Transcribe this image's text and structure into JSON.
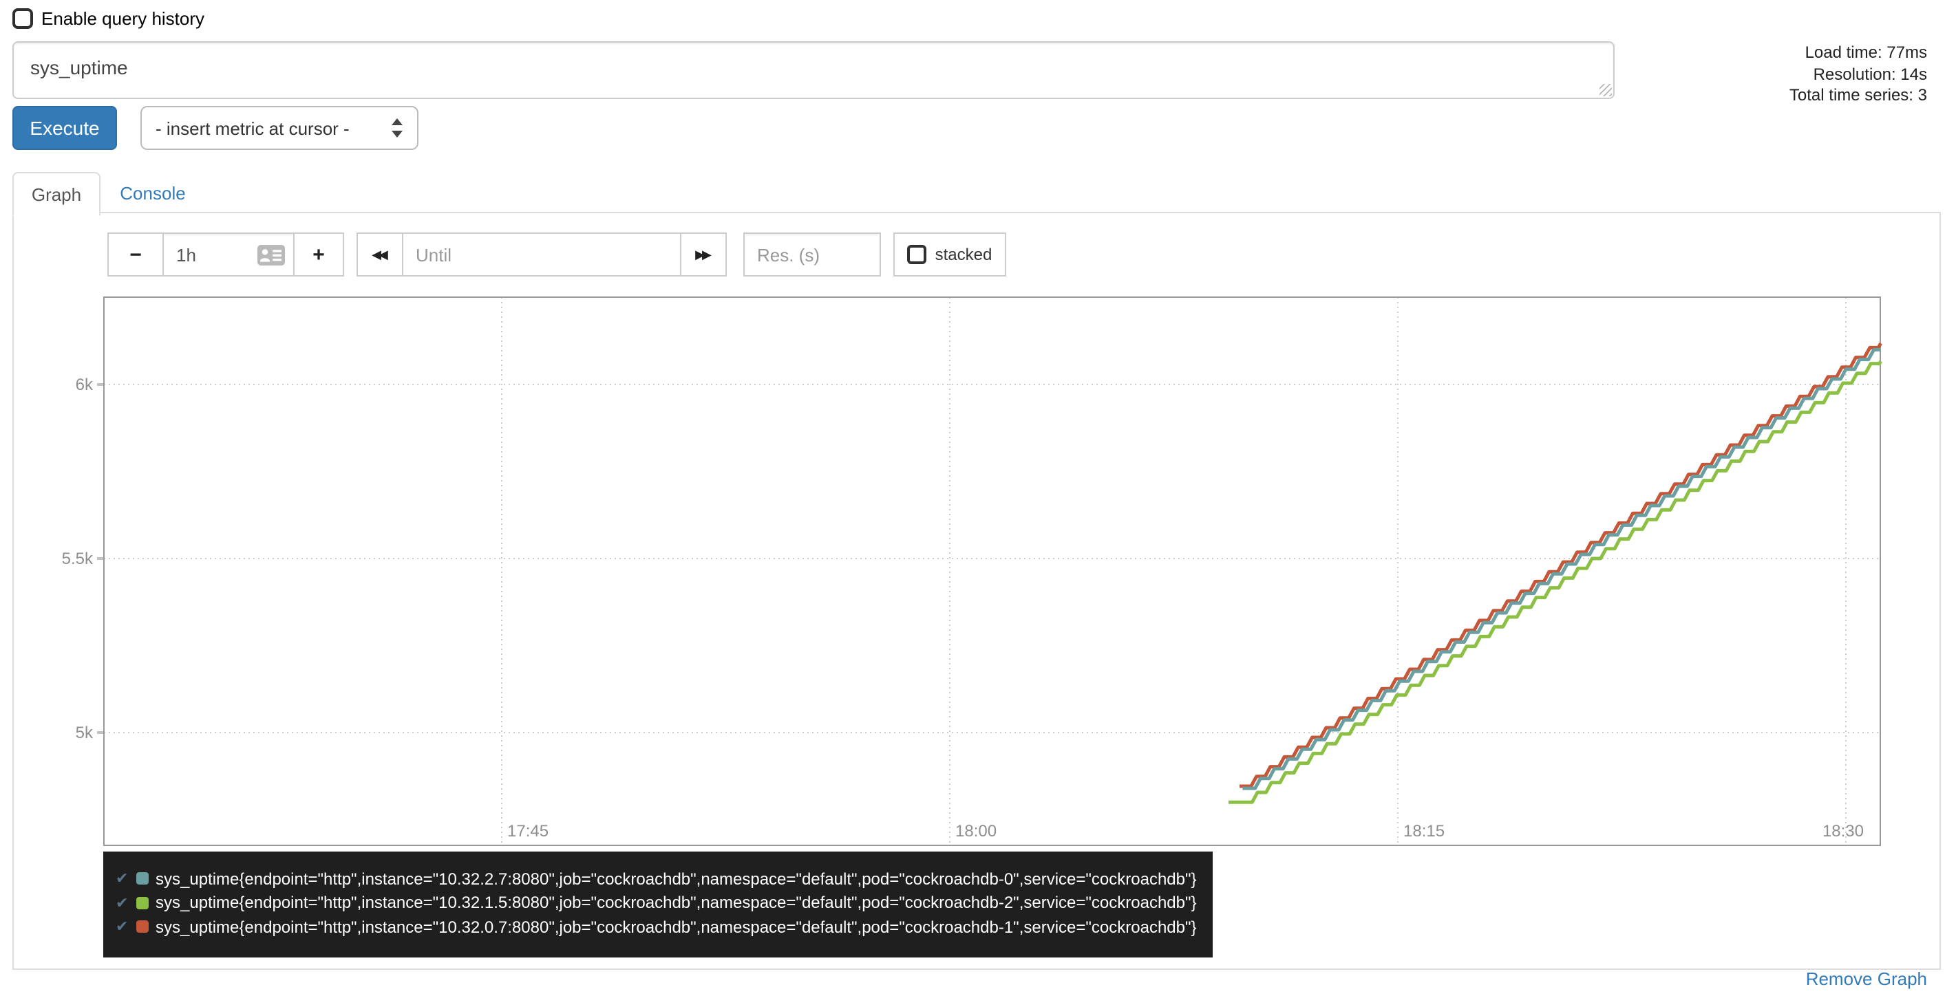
{
  "header": {
    "enable_query_history_label": "Enable query history",
    "query_history_checked": false
  },
  "expression_input": {
    "value": "sys_uptime"
  },
  "stats": {
    "load_time": "Load time: 77ms",
    "resolution": "Resolution: 14s",
    "total_time_series": "Total time series: 3"
  },
  "toolbar": {
    "execute_label": "Execute",
    "metric_dropdown_value": "- insert metric at cursor -"
  },
  "tabs": {
    "graph": "Graph",
    "console": "Console",
    "active": "Graph"
  },
  "graph_controls": {
    "shrink_range_label": "−",
    "range_value": "1h",
    "grow_range_label": "+",
    "back_label": "◀◀",
    "until_placeholder": "Until",
    "forward_label": "▶▶",
    "resolution_placeholder": "Res. (s)",
    "stacked_label": "stacked",
    "stacked_checked": false
  },
  "chart_data": {
    "type": "line",
    "title": "",
    "xlabel": "",
    "ylabel": "",
    "x_axis": {
      "ticks": [
        "17:45",
        "18:00",
        "18:15",
        "18:30"
      ],
      "tick_seconds_after_1745": [
        0,
        900,
        1800,
        2700
      ],
      "range": [
        "17:31:40",
        "18:31:10"
      ],
      "grid": "dotted"
    },
    "y_axis": {
      "ticks": [
        "5k",
        "5.5k",
        "6k"
      ],
      "tick_values": [
        5000,
        5500,
        6000
      ],
      "range": [
        4676,
        6251
      ],
      "grid": "dotted"
    },
    "legend_position": "bottom",
    "series": [
      {
        "name": "sys_uptime{endpoint=\"http\",instance=\"10.32.2.7:8080\",job=\"cockroachdb\",namespace=\"default\",pod=\"cockroachdb-0\",service=\"cockroachdb\"}",
        "color": "#6a9ea0",
        "z": 1,
        "shape": "uptime counter stair-step ramp, +1 unit per second",
        "t0_s": 1488,
        "v0": 4840,
        "lead_flat_s": 8,
        "t_end_s": 2770,
        "v_end": 6100,
        "step_s": 28
      },
      {
        "name": "sys_uptime{endpoint=\"http\",instance=\"10.32.1.5:8080\",job=\"cockroachdb\",namespace=\"default\",pod=\"cockroachdb-2\",service=\"cockroachdb\"}",
        "color": "#8bc045",
        "z": 2,
        "shape": "uptime counter stair-step ramp, +1 unit per second",
        "t0_s": 1460,
        "v0": 4800,
        "lead_flat_s": 30,
        "t_end_s": 2770,
        "v_end": 6067,
        "step_s": 28
      },
      {
        "name": "sys_uptime{endpoint=\"http\",instance=\"10.32.0.7:8080\",job=\"cockroachdb\",namespace=\"default\",pod=\"cockroachdb-1\",service=\"cockroachdb\"}",
        "color": "#c55738",
        "z": 0,
        "shape": "uptime counter stair-step ramp, +1 unit per second",
        "t0_s": 1482,
        "v0": 4846,
        "lead_flat_s": 6,
        "t_end_s": 2770,
        "v_end": 6118,
        "step_s": 28
      }
    ]
  },
  "legend": {
    "check_glyph": "✔",
    "items": [
      {
        "label": "sys_uptime{endpoint=\"http\",instance=\"10.32.2.7:8080\",job=\"cockroachdb\",namespace=\"default\",pod=\"cockroachdb-0\",service=\"cockroachdb\"}",
        "color": "#6a9ea0"
      },
      {
        "label": "sys_uptime{endpoint=\"http\",instance=\"10.32.1.5:8080\",job=\"cockroachdb\",namespace=\"default\",pod=\"cockroachdb-2\",service=\"cockroachdb\"}",
        "color": "#8bc045"
      },
      {
        "label": "sys_uptime{endpoint=\"http\",instance=\"10.32.0.7:8080\",job=\"cockroachdb\",namespace=\"default\",pod=\"cockroachdb-1\",service=\"cockroachdb\"}",
        "color": "#c55738"
      }
    ]
  },
  "footer": {
    "remove_graph_label": "Remove Graph"
  },
  "colors": {
    "accent": "#337ab7",
    "execute_bg": "#337ab7",
    "legend_bg": "#1f1f1f",
    "chart_border": "#999999",
    "grid_dots": "#cccccc",
    "tick_text": "#8e8e8e"
  }
}
